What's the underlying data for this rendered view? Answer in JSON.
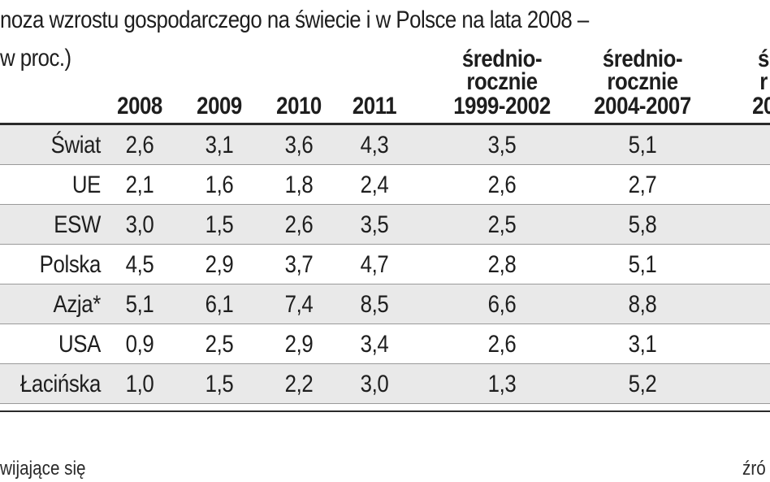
{
  "title": "noza wzrostu gospodarczego na świecie i w Polsce na lata 2008 –",
  "subtitle": "w proc.)",
  "footer_left": "wijające się",
  "footer_right": "źró",
  "chart_data": {
    "type": "table",
    "columns": [
      {
        "lines": [
          "2008"
        ]
      },
      {
        "lines": [
          "2009"
        ]
      },
      {
        "lines": [
          "2010"
        ]
      },
      {
        "lines": [
          "2011"
        ]
      },
      {
        "lines": [
          "średnio-",
          "rocznie",
          "1999-2002"
        ]
      },
      {
        "lines": [
          "średnio-",
          "rocznie",
          "2004-2007"
        ]
      },
      {
        "lines": [
          "ś",
          "r",
          "20"
        ]
      }
    ],
    "rows": [
      {
        "label": "Świat",
        "values": [
          "2,6",
          "3,1",
          "3,6",
          "4,3",
          "3,5",
          "5,1"
        ]
      },
      {
        "label": "UE",
        "values": [
          "2,1",
          "1,6",
          "1,8",
          "2,4",
          "2,6",
          "2,7"
        ]
      },
      {
        "label": "ESW",
        "values": [
          "3,0",
          "1,5",
          "2,6",
          "3,5",
          "2,5",
          "5,8"
        ]
      },
      {
        "label": "Polska",
        "values": [
          "4,5",
          "2,9",
          "3,7",
          "4,7",
          "2,8",
          "5,1"
        ]
      },
      {
        "label": "Azja*",
        "values": [
          "5,1",
          "6,1",
          "7,4",
          "8,5",
          "6,6",
          "8,8"
        ]
      },
      {
        "label": "USA",
        "values": [
          "0,9",
          "2,5",
          "2,9",
          "3,4",
          "2,6",
          "3,1"
        ]
      },
      {
        "label": "Łacińska",
        "values": [
          "1,0",
          "1,5",
          "2,2",
          "3,0",
          "1,3",
          "5,2"
        ]
      }
    ]
  }
}
